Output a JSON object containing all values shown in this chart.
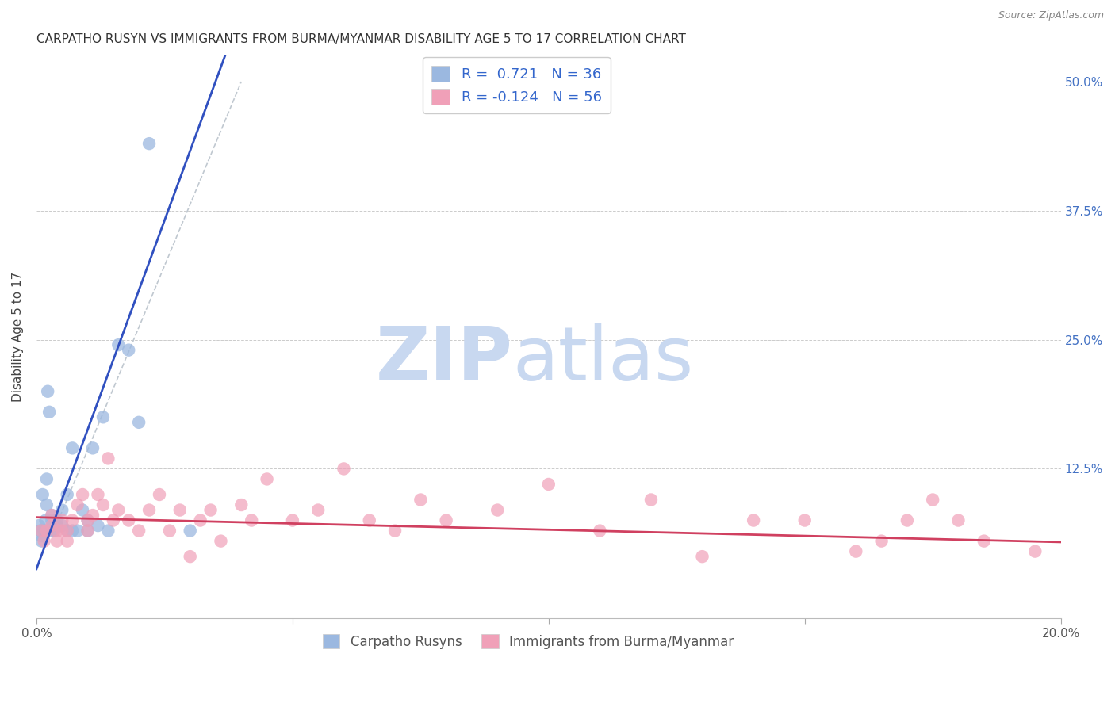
{
  "title": "CARPATHO RUSYN VS IMMIGRANTS FROM BURMA/MYANMAR DISABILITY AGE 5 TO 17 CORRELATION CHART",
  "source": "Source: ZipAtlas.com",
  "ylabel": "Disability Age 5 to 17",
  "xlim": [
    0.0,
    0.2
  ],
  "ylim": [
    -0.02,
    0.525
  ],
  "R_blue": "0.721",
  "N_blue": "36",
  "R_pink": "-0.124",
  "N_pink": "56",
  "legend_blue_label": "Carpatho Rusyns",
  "legend_pink_label": "Immigrants from Burma/Myanmar",
  "blue_dot_color": "#9BB8E0",
  "pink_dot_color": "#F0A0B8",
  "blue_line_color": "#3050C0",
  "pink_line_color": "#D04060",
  "watermark_zip_color": "#C8D8F0",
  "watermark_atlas_color": "#C8D8F0",
  "blue_dots_x": [
    0.0005,
    0.0008,
    0.001,
    0.001,
    0.0012,
    0.0015,
    0.0018,
    0.002,
    0.002,
    0.0022,
    0.0025,
    0.003,
    0.003,
    0.003,
    0.0035,
    0.004,
    0.004,
    0.005,
    0.005,
    0.006,
    0.006,
    0.007,
    0.007,
    0.008,
    0.009,
    0.01,
    0.01,
    0.011,
    0.012,
    0.013,
    0.014,
    0.016,
    0.018,
    0.02,
    0.022,
    0.03
  ],
  "blue_dots_y": [
    0.07,
    0.065,
    0.06,
    0.055,
    0.1,
    0.065,
    0.075,
    0.09,
    0.115,
    0.2,
    0.18,
    0.065,
    0.075,
    0.08,
    0.065,
    0.07,
    0.075,
    0.07,
    0.085,
    0.065,
    0.1,
    0.065,
    0.145,
    0.065,
    0.085,
    0.065,
    0.075,
    0.145,
    0.07,
    0.175,
    0.065,
    0.245,
    0.24,
    0.17,
    0.44,
    0.065
  ],
  "pink_dots_x": [
    0.001,
    0.0015,
    0.002,
    0.003,
    0.003,
    0.004,
    0.004,
    0.005,
    0.005,
    0.006,
    0.006,
    0.007,
    0.008,
    0.009,
    0.01,
    0.01,
    0.011,
    0.012,
    0.013,
    0.014,
    0.015,
    0.016,
    0.018,
    0.02,
    0.022,
    0.024,
    0.026,
    0.028,
    0.03,
    0.032,
    0.034,
    0.036,
    0.04,
    0.042,
    0.045,
    0.05,
    0.055,
    0.06,
    0.065,
    0.07,
    0.075,
    0.08,
    0.09,
    0.1,
    0.11,
    0.12,
    0.13,
    0.14,
    0.15,
    0.16,
    0.165,
    0.17,
    0.175,
    0.18,
    0.185,
    0.195
  ],
  "pink_dots_y": [
    0.065,
    0.055,
    0.065,
    0.07,
    0.08,
    0.055,
    0.065,
    0.065,
    0.075,
    0.055,
    0.065,
    0.075,
    0.09,
    0.1,
    0.065,
    0.075,
    0.08,
    0.1,
    0.09,
    0.135,
    0.075,
    0.085,
    0.075,
    0.065,
    0.085,
    0.1,
    0.065,
    0.085,
    0.04,
    0.075,
    0.085,
    0.055,
    0.09,
    0.075,
    0.115,
    0.075,
    0.085,
    0.125,
    0.075,
    0.065,
    0.095,
    0.075,
    0.085,
    0.11,
    0.065,
    0.095,
    0.04,
    0.075,
    0.075,
    0.045,
    0.055,
    0.075,
    0.095,
    0.075,
    0.055,
    0.045
  ],
  "blue_line_x": [
    0.0,
    0.2
  ],
  "blue_line_y_intercept": 0.028,
  "blue_line_slope": 13.5,
  "pink_line_x": [
    0.0,
    0.2
  ],
  "pink_line_y_intercept": 0.078,
  "pink_line_slope": -0.12
}
